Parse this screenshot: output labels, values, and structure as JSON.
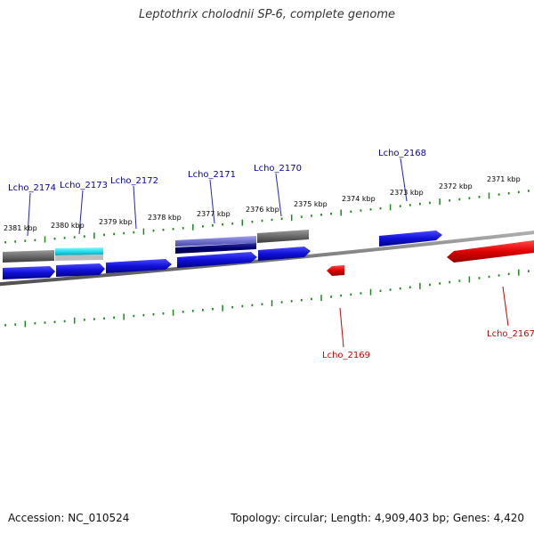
{
  "title": "Leptothrix cholodnii SP-6, complete genome",
  "footer": {
    "accession": "Accession: NC_010524",
    "summary": "Topology: circular; Length: 4,909,403 bp; Genes: 4,420"
  },
  "colors": {
    "forward_gene": "#1010d8",
    "reverse_gene": "#e00000",
    "label_forward": "#0000aa",
    "label_reverse": "#cc0000",
    "tick": "#1a8a1a",
    "backbone": "#7a7a7a",
    "pseudo_gray": "#6a6a6a",
    "cyan_feature": "#22e0f0",
    "lavender_feature": "#7070d0",
    "navy_feature": "#000070"
  },
  "upper_ruler_ticks": [
    "2381 kbp",
    "2380 kbp",
    "2379 kbp",
    "2378 kbp",
    "2377 kbp",
    "2376 kbp",
    "2375 kbp",
    "2374 kbp",
    "2373 kbp",
    "2372 kbp",
    "2371 kbp"
  ],
  "gene_labels": [
    {
      "name": "Lcho_2174",
      "strand": "forward"
    },
    {
      "name": "Lcho_2173",
      "strand": "forward"
    },
    {
      "name": "Lcho_2172",
      "strand": "forward"
    },
    {
      "name": "Lcho_2171",
      "strand": "forward"
    },
    {
      "name": "Lcho_2170",
      "strand": "forward"
    },
    {
      "name": "Lcho_2168",
      "strand": "forward"
    },
    {
      "name": "Lcho_2169",
      "strand": "reverse"
    },
    {
      "name": "Lcho_2167",
      "strand": "reverse"
    }
  ]
}
